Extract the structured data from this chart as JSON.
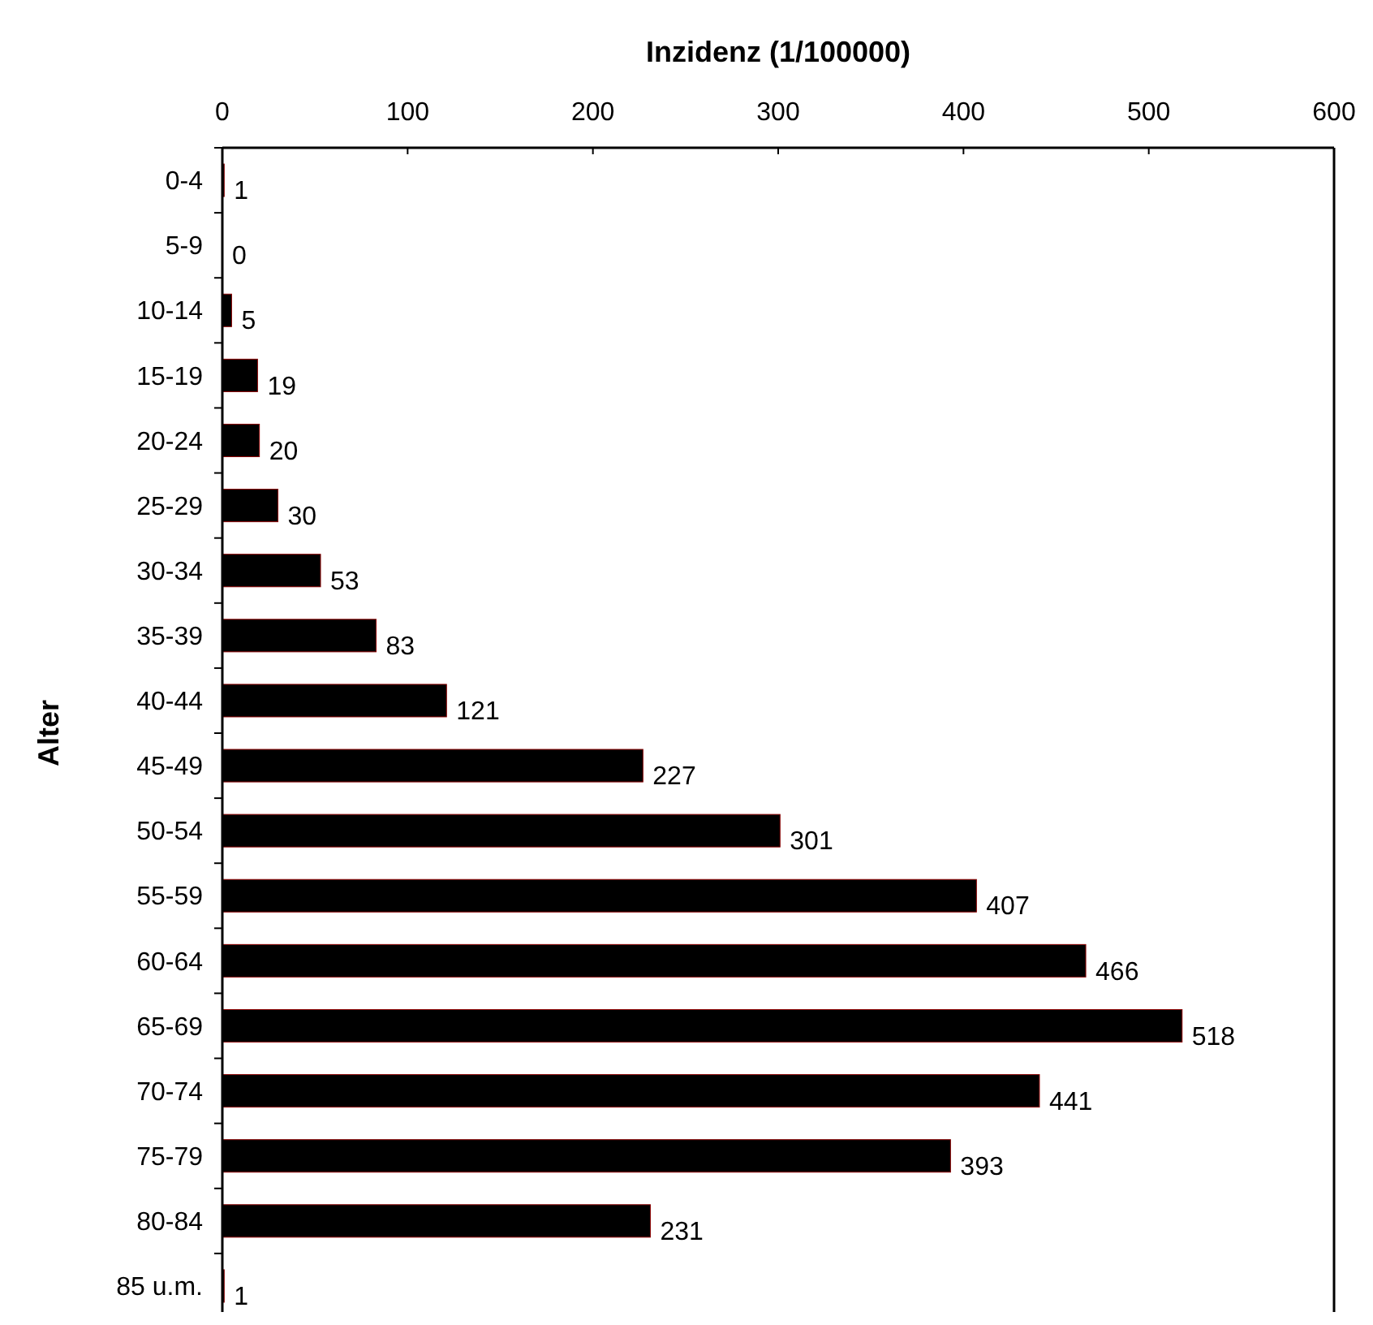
{
  "chart_data": {
    "type": "bar",
    "orientation": "horizontal",
    "xlabel": "Inzidenz (1/100000)",
    "ylabel": "Alter",
    "categories": [
      "0-4",
      "5-9",
      "10-14",
      "15-19",
      "20-24",
      "25-29",
      "30-34",
      "35-39",
      "40-44",
      "45-49",
      "50-54",
      "55-59",
      "60-64",
      "65-69",
      "70-74",
      "75-79",
      "80-84",
      "85 u.m."
    ],
    "values": [
      1,
      0,
      5,
      19,
      20,
      30,
      53,
      83,
      121,
      227,
      301,
      407,
      466,
      518,
      441,
      393,
      231,
      1
    ],
    "color": "#000000",
    "xlim": [
      0,
      600
    ],
    "xticks": [
      0,
      100,
      200,
      300,
      400,
      500,
      600
    ],
    "data_labels": true
  }
}
